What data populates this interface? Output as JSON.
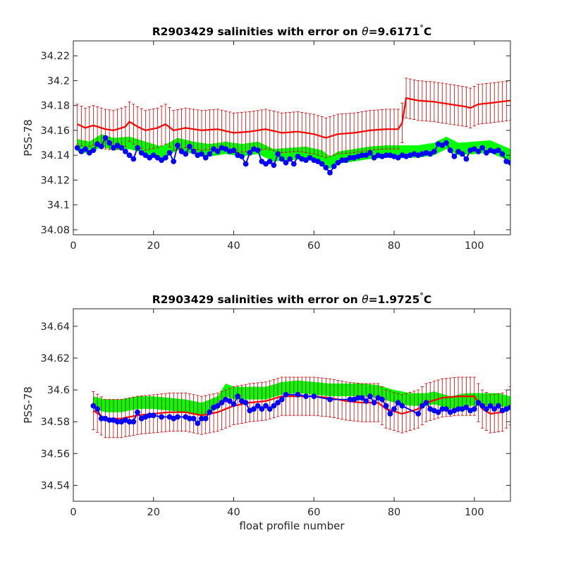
{
  "chart_data": [
    {
      "type": "line",
      "title_prefix": "R2903429 salinities with error on ",
      "theta_symbol": "θ",
      "theta_value": "=9.6171",
      "degree_symbol": "°",
      "degree_unit": "C",
      "xlabel": "",
      "ylabel": "PSS-78",
      "xlim": [
        0,
        109
      ],
      "ylim": [
        34.076,
        34.232
      ],
      "xticks": [
        0,
        20,
        40,
        60,
        80,
        100
      ],
      "yticks": [
        34.08,
        34.1,
        34.12,
        34.14,
        34.16,
        34.18,
        34.2,
        34.22
      ],
      "ytick_labels": [
        "34.08",
        "34.1",
        "34.12",
        "34.14",
        "34.16",
        "34.18",
        "34.2",
        "34.22"
      ],
      "grid": false,
      "colors": {
        "measured": "#0000ff",
        "mapped": "#ff0000",
        "error_bars": "#cc0000",
        "band": "#00ff00"
      },
      "x_range": [
        1,
        109
      ],
      "measured_anchors": [
        [
          1,
          34.146
        ],
        [
          2,
          34.143
        ],
        [
          3,
          34.145
        ],
        [
          4,
          34.142
        ],
        [
          5,
          34.144
        ],
        [
          6,
          34.149
        ],
        [
          7,
          34.147
        ],
        [
          8,
          34.154
        ],
        [
          9,
          34.15
        ],
        [
          10,
          34.146
        ],
        [
          11,
          34.148
        ],
        [
          12,
          34.146
        ],
        [
          13,
          34.143
        ],
        [
          14,
          34.14
        ],
        [
          15,
          34.137
        ],
        [
          16,
          34.146
        ],
        [
          17,
          34.142
        ],
        [
          18,
          34.14
        ],
        [
          19,
          34.138
        ],
        [
          20,
          34.14
        ],
        [
          21,
          34.138
        ],
        [
          22,
          34.136
        ],
        [
          23,
          34.138
        ],
        [
          24,
          34.142
        ],
        [
          25,
          34.135
        ],
        [
          26,
          34.148
        ],
        [
          27,
          34.143
        ],
        [
          28,
          34.141
        ],
        [
          29,
          34.147
        ],
        [
          30,
          34.143
        ],
        [
          31,
          34.14
        ],
        [
          32,
          34.141
        ],
        [
          33,
          34.138
        ],
        [
          34,
          34.141
        ],
        [
          35,
          34.145
        ],
        [
          36,
          34.143
        ],
        [
          37,
          34.146
        ],
        [
          38,
          34.145
        ],
        [
          39,
          34.143
        ],
        [
          40,
          34.144
        ],
        [
          41,
          34.14
        ],
        [
          42,
          34.139
        ],
        [
          43,
          34.133
        ],
        [
          44,
          34.142
        ],
        [
          45,
          34.145
        ],
        [
          46,
          34.144
        ],
        [
          47,
          34.135
        ],
        [
          48,
          34.133
        ],
        [
          49,
          34.135
        ],
        [
          50,
          34.132
        ],
        [
          51,
          34.141
        ],
        [
          52,
          34.137
        ],
        [
          53,
          34.134
        ],
        [
          54,
          34.137
        ],
        [
          55,
          34.133
        ],
        [
          56,
          34.139
        ],
        [
          57,
          34.137
        ],
        [
          58,
          34.136
        ],
        [
          59,
          34.138
        ],
        [
          60,
          34.136
        ],
        [
          61,
          34.135
        ],
        [
          62,
          34.133
        ],
        [
          63,
          34.13
        ],
        [
          64,
          34.126
        ],
        [
          65,
          34.131
        ],
        [
          66,
          34.134
        ],
        [
          67,
          34.136
        ],
        [
          68,
          34.136
        ],
        [
          69,
          34.138
        ],
        [
          70,
          34.138
        ],
        [
          71,
          34.139
        ],
        [
          72,
          34.14
        ],
        [
          73,
          34.14
        ],
        [
          74,
          34.142
        ],
        [
          75,
          34.138
        ],
        [
          76,
          34.14
        ],
        [
          77,
          34.139
        ],
        [
          78,
          34.14
        ],
        [
          79,
          34.14
        ],
        [
          80,
          34.139
        ],
        [
          81,
          34.138
        ],
        [
          82,
          34.14
        ],
        [
          83,
          34.139
        ],
        [
          84,
          34.14
        ],
        [
          85,
          34.141
        ],
        [
          86,
          34.14
        ],
        [
          87,
          34.141
        ],
        [
          88,
          34.142
        ],
        [
          89,
          34.141
        ],
        [
          90,
          34.143
        ],
        [
          91,
          34.149
        ],
        [
          92,
          34.148
        ],
        [
          93,
          34.15
        ],
        [
          94,
          34.144
        ],
        [
          95,
          34.139
        ],
        [
          96,
          34.143
        ],
        [
          97,
          34.141
        ],
        [
          98,
          34.137
        ],
        [
          99,
          34.144
        ],
        [
          100,
          34.145
        ],
        [
          101,
          34.143
        ],
        [
          102,
          34.146
        ],
        [
          103,
          34.142
        ],
        [
          104,
          34.144
        ],
        [
          105,
          34.143
        ],
        [
          106,
          34.144
        ],
        [
          107,
          34.141
        ],
        [
          108,
          34.135
        ],
        [
          109,
          34.134
        ]
      ],
      "mapped_anchors": [
        [
          1,
          34.165
        ],
        [
          3,
          34.162
        ],
        [
          5,
          34.164
        ],
        [
          8,
          34.161
        ],
        [
          10,
          34.16
        ],
        [
          13,
          34.163
        ],
        [
          14,
          34.167
        ],
        [
          16,
          34.163
        ],
        [
          18,
          34.16
        ],
        [
          21,
          34.162
        ],
        [
          23,
          34.165
        ],
        [
          25,
          34.16
        ],
        [
          28,
          34.162
        ],
        [
          32,
          34.16
        ],
        [
          36,
          34.161
        ],
        [
          40,
          34.158
        ],
        [
          44,
          34.159
        ],
        [
          48,
          34.161
        ],
        [
          52,
          34.158
        ],
        [
          56,
          34.159
        ],
        [
          60,
          34.157
        ],
        [
          63,
          34.154
        ],
        [
          66,
          34.157
        ],
        [
          70,
          34.158
        ],
        [
          74,
          34.16
        ],
        [
          78,
          34.161
        ],
        [
          81,
          34.161
        ],
        [
          82,
          34.166
        ],
        [
          83,
          34.186
        ],
        [
          86,
          34.184
        ],
        [
          90,
          34.183
        ],
        [
          94,
          34.181
        ],
        [
          98,
          34.179
        ],
        [
          99,
          34.178
        ],
        [
          101,
          34.181
        ],
        [
          104,
          34.182
        ],
        [
          109,
          34.184
        ]
      ],
      "mapped_error_half_width": 0.016,
      "band_anchors": [
        [
          1,
          34.148
        ],
        [
          4,
          34.146
        ],
        [
          7,
          34.152
        ],
        [
          10,
          34.149
        ],
        [
          14,
          34.15
        ],
        [
          18,
          34.146
        ],
        [
          22,
          34.142
        ],
        [
          26,
          34.149
        ],
        [
          30,
          34.146
        ],
        [
          34,
          34.144
        ],
        [
          38,
          34.146
        ],
        [
          42,
          34.144
        ],
        [
          46,
          34.146
        ],
        [
          50,
          34.14
        ],
        [
          54,
          34.141
        ],
        [
          58,
          34.142
        ],
        [
          62,
          34.139
        ],
        [
          64,
          34.134
        ],
        [
          66,
          34.138
        ],
        [
          70,
          34.14
        ],
        [
          74,
          34.142
        ],
        [
          78,
          34.143
        ],
        [
          82,
          34.143
        ],
        [
          86,
          34.143
        ],
        [
          90,
          34.145
        ],
        [
          93,
          34.15
        ],
        [
          96,
          34.145
        ],
        [
          100,
          34.146
        ],
        [
          104,
          34.147
        ],
        [
          109,
          34.14
        ]
      ],
      "band_half_width": 0.005
    },
    {
      "type": "line",
      "title_prefix": "R2903429 salinities with error on ",
      "theta_symbol": "θ",
      "theta_value": "=1.9725",
      "degree_symbol": "°",
      "degree_unit": "C",
      "xlabel": "float profile number",
      "ylabel": "PSS-78",
      "xlim": [
        0,
        109
      ],
      "ylim": [
        34.53,
        34.651
      ],
      "xticks": [
        0,
        20,
        40,
        60,
        80,
        100
      ],
      "yticks": [
        34.54,
        34.56,
        34.58,
        34.6,
        34.62,
        34.64
      ],
      "ytick_labels": [
        "34.54",
        "34.56",
        "34.58",
        "34.6",
        "34.62",
        "34.64"
      ],
      "grid": false,
      "colors": {
        "measured": "#0000ff",
        "mapped": "#ff0000",
        "error_bars": "#cc0000",
        "band": "#00ff00"
      },
      "x_range": [
        5,
        109
      ],
      "measured_points": [
        [
          5,
          34.59
        ],
        [
          6,
          34.588
        ],
        [
          7,
          34.582
        ],
        [
          8,
          34.582
        ],
        [
          9,
          34.581
        ],
        [
          10,
          34.581
        ],
        [
          11,
          34.58
        ],
        [
          12,
          34.58
        ],
        [
          13,
          34.581
        ],
        [
          14,
          34.58
        ],
        [
          15,
          34.58
        ],
        [
          16,
          34.586
        ],
        [
          17,
          34.582
        ],
        [
          18,
          34.583
        ],
        [
          19,
          34.584
        ],
        [
          20,
          34.584
        ],
        [
          22,
          34.583
        ],
        [
          24,
          34.583
        ],
        [
          25,
          34.582
        ],
        [
          26,
          34.583
        ],
        [
          28,
          34.583
        ],
        [
          29,
          34.582
        ],
        [
          30,
          34.582
        ],
        [
          31,
          34.579
        ],
        [
          32,
          34.582
        ],
        [
          33,
          34.582
        ],
        [
          34,
          34.586
        ],
        [
          35,
          34.589
        ],
        [
          36,
          34.59
        ],
        [
          37,
          34.592
        ],
        [
          38,
          34.594
        ],
        [
          39,
          34.593
        ],
        [
          40,
          34.591
        ],
        [
          41,
          34.596
        ],
        [
          42,
          34.593
        ],
        [
          43,
          34.592
        ],
        [
          44,
          34.587
        ],
        [
          45,
          34.588
        ],
        [
          46,
          34.59
        ],
        [
          47,
          34.588
        ],
        [
          48,
          34.59
        ],
        [
          49,
          34.588
        ],
        [
          50,
          34.59
        ],
        [
          51,
          34.592
        ],
        [
          52,
          34.594
        ],
        [
          53,
          34.597
        ],
        [
          56,
          34.597
        ],
        [
          58,
          34.596
        ],
        [
          60,
          34.596
        ],
        [
          64,
          34.594
        ],
        [
          69,
          34.594
        ],
        [
          70,
          34.594
        ],
        [
          71,
          34.595
        ],
        [
          72,
          34.595
        ],
        [
          73,
          34.593
        ],
        [
          74,
          34.596
        ],
        [
          75,
          34.592
        ],
        [
          76,
          34.595
        ],
        [
          77,
          34.594
        ],
        [
          78,
          34.59
        ],
        [
          79,
          34.585
        ],
        [
          80,
          34.588
        ],
        [
          81,
          34.592
        ],
        [
          82,
          34.59
        ],
        [
          86,
          34.585
        ],
        [
          87,
          34.59
        ],
        [
          88,
          34.592
        ],
        [
          89,
          34.588
        ],
        [
          90,
          34.587
        ],
        [
          91,
          34.586
        ],
        [
          92,
          34.588
        ],
        [
          93,
          34.588
        ],
        [
          94,
          34.586
        ],
        [
          95,
          34.587
        ],
        [
          96,
          34.588
        ],
        [
          97,
          34.588
        ],
        [
          98,
          34.589
        ],
        [
          99,
          34.587
        ],
        [
          100,
          34.588
        ],
        [
          101,
          34.592
        ],
        [
          102,
          34.59
        ],
        [
          103,
          34.588
        ],
        [
          104,
          34.59
        ],
        [
          105,
          34.588
        ],
        [
          106,
          34.59
        ],
        [
          107,
          34.587
        ],
        [
          108,
          34.588
        ],
        [
          109,
          34.589
        ]
      ],
      "mapped_anchors": [
        [
          5,
          34.587
        ],
        [
          8,
          34.582
        ],
        [
          12,
          34.582
        ],
        [
          16,
          34.584
        ],
        [
          20,
          34.585
        ],
        [
          24,
          34.586
        ],
        [
          28,
          34.586
        ],
        [
          32,
          34.584
        ],
        [
          36,
          34.586
        ],
        [
          40,
          34.59
        ],
        [
          44,
          34.592
        ],
        [
          48,
          34.593
        ],
        [
          52,
          34.596
        ],
        [
          56,
          34.596
        ],
        [
          60,
          34.596
        ],
        [
          64,
          34.595
        ],
        [
          68,
          34.593
        ],
        [
          72,
          34.592
        ],
        [
          76,
          34.592
        ],
        [
          78,
          34.588
        ],
        [
          82,
          34.585
        ],
        [
          86,
          34.588
        ],
        [
          88,
          34.592
        ],
        [
          92,
          34.595
        ],
        [
          96,
          34.596
        ],
        [
          100,
          34.596
        ],
        [
          102,
          34.588
        ],
        [
          104,
          34.585
        ],
        [
          107,
          34.586
        ],
        [
          109,
          34.59
        ]
      ],
      "mapped_error_half_width": 0.012,
      "band_anchors": [
        [
          5,
          34.592
        ],
        [
          8,
          34.59
        ],
        [
          12,
          34.59
        ],
        [
          16,
          34.592
        ],
        [
          20,
          34.592
        ],
        [
          24,
          34.591
        ],
        [
          28,
          34.59
        ],
        [
          32,
          34.588
        ],
        [
          36,
          34.592
        ],
        [
          38,
          34.6
        ],
        [
          40,
          34.598
        ],
        [
          44,
          34.598
        ],
        [
          48,
          34.598
        ],
        [
          52,
          34.601
        ],
        [
          56,
          34.602
        ],
        [
          60,
          34.601
        ],
        [
          64,
          34.6
        ],
        [
          68,
          34.6
        ],
        [
          72,
          34.6
        ],
        [
          76,
          34.599
        ],
        [
          80,
          34.596
        ],
        [
          84,
          34.594
        ],
        [
          88,
          34.594
        ],
        [
          90,
          34.595
        ],
        [
          94,
          34.592
        ],
        [
          98,
          34.594
        ],
        [
          102,
          34.594
        ],
        [
          106,
          34.594
        ],
        [
          109,
          34.592
        ]
      ],
      "band_half_width": 0.004
    }
  ]
}
